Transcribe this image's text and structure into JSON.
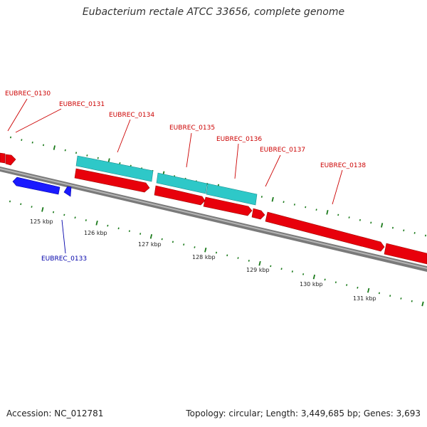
{
  "title": "Eubacterium rectale ATCC 33656, complete genome",
  "footer": {
    "accession": "Accession: NC_012781",
    "topology": "Topology: circular; Length: 3,449,685 bp; Genes: 3,693"
  },
  "colors": {
    "forward_cds": "#e8000b",
    "reverse_cds": "#1a1aff",
    "rna_feature": "#2ec8c8",
    "backbone": "#7a7a7a",
    "tick": "#1a7a1a",
    "label_forward": "#cc0000",
    "label_reverse": "#0000aa"
  },
  "ruler": {
    "labels": [
      "125 kbp",
      "126 kbp",
      "127 kbp",
      "128 kbp",
      "129 kbp",
      "130 kbp",
      "131 kbp"
    ]
  },
  "genes": [
    {
      "name": "EUBREC_0130",
      "strand": "forward"
    },
    {
      "name": "EUBREC_0131",
      "strand": "forward"
    },
    {
      "name": "EUBREC_0133",
      "strand": "reverse"
    },
    {
      "name": "EUBREC_0134",
      "strand": "forward"
    },
    {
      "name": "EUBREC_0135",
      "strand": "forward"
    },
    {
      "name": "EUBREC_0136",
      "strand": "forward"
    },
    {
      "name": "EUBREC_0137",
      "strand": "forward"
    },
    {
      "name": "EUBREC_0138",
      "strand": "forward"
    }
  ]
}
